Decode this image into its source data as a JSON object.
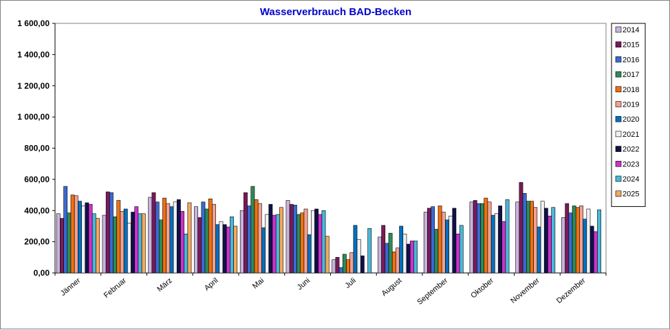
{
  "chart_data": {
    "type": "bar",
    "title": "Wasserverbrauch BAD-Becken",
    "xlabel": "",
    "ylabel": "",
    "ylim": [
      0,
      1600
    ],
    "yticks": [
      0,
      200,
      400,
      600,
      800,
      1000,
      1200,
      1400,
      1600
    ],
    "ytick_labels": [
      "0,00",
      "200,00",
      "400,00",
      "600,00",
      "800,00",
      "1 000,00",
      "1 200,00",
      "1 400,00",
      "1 600,00"
    ],
    "categories": [
      "Jänner",
      "Februar",
      "März",
      "April",
      "Mai",
      "Juni",
      "Juli",
      "August",
      "September",
      "Oktober",
      "November",
      "Dezember"
    ],
    "legend_position": "right",
    "grid": false,
    "series": [
      {
        "name": "2014",
        "color": "#c8b4dc",
        "values": [
          380,
          370,
          485,
          425,
          400,
          465,
          85,
          230,
          390,
          455,
          455,
          355
        ]
      },
      {
        "name": "2015",
        "color": "#7a1a5a",
        "values": [
          350,
          520,
          515,
          355,
          515,
          440,
          100,
          305,
          415,
          465,
          580,
          445
        ]
      },
      {
        "name": "2016",
        "color": "#3a6ad4",
        "values": [
          555,
          515,
          455,
          455,
          430,
          435,
          35,
          190,
          425,
          445,
          510,
          385
        ]
      },
      {
        "name": "2017",
        "color": "#2e8b57",
        "values": [
          385,
          360,
          340,
          410,
          555,
          375,
          120,
          255,
          280,
          445,
          460,
          430
        ]
      },
      {
        "name": "2018",
        "color": "#f07010",
        "values": [
          500,
          465,
          480,
          475,
          470,
          385,
          85,
          135,
          430,
          480,
          460,
          420
        ]
      },
      {
        "name": "2019",
        "color": "#f4a090",
        "values": [
          495,
          395,
          445,
          440,
          445,
          410,
          130,
          160,
          390,
          455,
          420,
          430
        ]
      },
      {
        "name": "2020",
        "color": "#0070c0",
        "values": [
          460,
          410,
          425,
          310,
          290,
          245,
          305,
          300,
          340,
          370,
          295,
          345
        ]
      },
      {
        "name": "2021",
        "color": "#f0f0f0",
        "values": [
          430,
          320,
          455,
          330,
          375,
          400,
          215,
          250,
          365,
          380,
          460,
          410
        ]
      },
      {
        "name": "2022",
        "color": "#10104a",
        "values": [
          450,
          390,
          470,
          310,
          440,
          410,
          110,
          185,
          415,
          430,
          415,
          300
        ]
      },
      {
        "name": "2023",
        "color": "#cc33cc",
        "values": [
          440,
          425,
          395,
          295,
          370,
          375,
          0,
          205,
          250,
          330,
          365,
          265
        ]
      },
      {
        "name": "2024",
        "color": "#4ab8d8",
        "values": [
          380,
          380,
          250,
          360,
          375,
          400,
          285,
          205,
          305,
          470,
          420,
          405
        ]
      },
      {
        "name": "2025",
        "color": "#f4a860",
        "values": [
          350,
          380,
          450,
          300,
          420,
          235,
          null,
          null,
          null,
          null,
          null,
          null
        ]
      }
    ]
  }
}
